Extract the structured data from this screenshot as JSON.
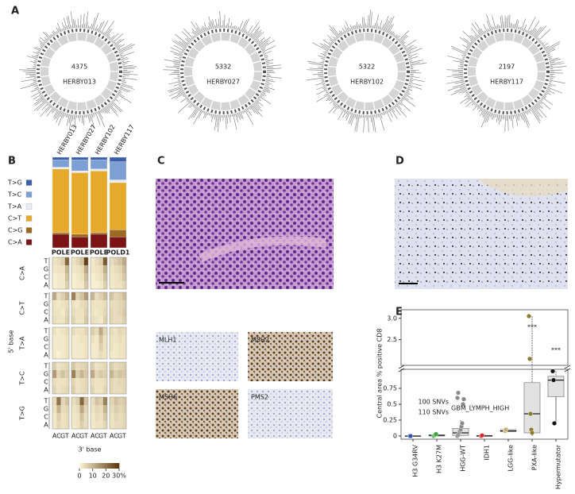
{
  "panels": {
    "a": "A",
    "b": "B",
    "c": "C",
    "d": "D",
    "e": "E"
  },
  "circos": [
    {
      "count": 4375,
      "name": "HERBY013"
    },
    {
      "count": 5332,
      "name": "HERBY027"
    },
    {
      "count": 5322,
      "name": "HERBY102"
    },
    {
      "count": 2197,
      "name": "HERBY117"
    }
  ],
  "ihc": {
    "labels": [
      "MLH1",
      "MSH2",
      "MSH6",
      "PMS2"
    ]
  },
  "chart_data": [
    {
      "type": "stacked_bar",
      "categories": [
        "HERBY013",
        "HERBY027",
        "HERBY102",
        "HERBY117"
      ],
      "series": [
        {
          "name": "T>G",
          "color": "#3a5fa8",
          "values": [
            3,
            3,
            3,
            5
          ]
        },
        {
          "name": "T>C",
          "color": "#7d9fd3",
          "values": [
            8,
            12,
            10,
            20
          ]
        },
        {
          "name": "T>A",
          "color": "#e9edf3",
          "values": [
            2,
            2,
            2,
            3
          ]
        },
        {
          "name": "C>T",
          "color": "#e7a92b",
          "values": [
            70,
            68,
            68,
            52
          ]
        },
        {
          "name": "C>G",
          "color": "#9a6a22",
          "values": [
            2,
            3,
            2,
            8
          ]
        },
        {
          "name": "C>A",
          "color": "#7b1414",
          "values": [
            15,
            12,
            15,
            12
          ]
        }
      ]
    },
    {
      "type": "heatmap",
      "column_labels": [
        "POLE",
        "POLE",
        "POLE",
        "POLD1"
      ],
      "row_groups": [
        "C>A",
        "C>T",
        "T>A",
        "T>C",
        "T>G"
      ],
      "five_prime": [
        "T",
        "G",
        "C",
        "A"
      ],
      "three_prime": [
        "A",
        "C",
        "G",
        "T"
      ],
      "ylabel": "5' base",
      "xlabel": "3' base",
      "colorbar": {
        "lim": [
          0,
          30
        ],
        "ticks": [
          0,
          10,
          20,
          {
            "value": 30,
            "label": "30%"
          }
        ]
      },
      "values": [
        [
          [
            [
              3,
              4,
              6,
              22
            ],
            [
              2,
              3,
              3,
              10
            ],
            [
              1,
              2,
              2,
              8
            ],
            [
              1,
              2,
              2,
              6
            ]
          ],
          [
            [
              3,
              5,
              8,
              28
            ],
            [
              2,
              3,
              4,
              12
            ],
            [
              1,
              2,
              3,
              9
            ],
            [
              1,
              2,
              2,
              7
            ]
          ],
          [
            [
              2,
              4,
              6,
              24
            ],
            [
              2,
              3,
              4,
              11
            ],
            [
              1,
              2,
              3,
              8
            ],
            [
              1,
              1,
              2,
              6
            ]
          ],
          [
            [
              4,
              6,
              8,
              12
            ],
            [
              3,
              4,
              5,
              9
            ],
            [
              2,
              3,
              4,
              7
            ],
            [
              2,
              3,
              3,
              5
            ]
          ]
        ],
        [
          [
            [
              12,
              4,
              6,
              10
            ],
            [
              3,
              2,
              3,
              4
            ],
            [
              3,
              3,
              2,
              5
            ],
            [
              4,
              3,
              3,
              6
            ]
          ],
          [
            [
              18,
              5,
              8,
              14
            ],
            [
              3,
              2,
              4,
              5
            ],
            [
              4,
              3,
              3,
              6
            ],
            [
              5,
              3,
              3,
              7
            ]
          ],
          [
            [
              10,
              4,
              6,
              9
            ],
            [
              3,
              3,
              3,
              4
            ],
            [
              3,
              2,
              3,
              5
            ],
            [
              4,
              3,
              2,
              6
            ]
          ],
          [
            [
              8,
              5,
              6,
              9
            ],
            [
              4,
              4,
              5,
              6
            ],
            [
              5,
              4,
              5,
              7
            ],
            [
              5,
              4,
              4,
              6
            ]
          ]
        ],
        [
          [
            [
              3,
              2,
              3,
              4
            ],
            [
              2,
              2,
              2,
              3
            ],
            [
              2,
              2,
              2,
              3
            ],
            [
              2,
              1,
              2,
              3
            ]
          ],
          [
            [
              4,
              3,
              3,
              5
            ],
            [
              2,
              2,
              3,
              3
            ],
            [
              2,
              2,
              2,
              3
            ],
            [
              2,
              2,
              2,
              3
            ]
          ],
          [
            [
              6,
              4,
              12,
              5
            ],
            [
              3,
              2,
              8,
              3
            ],
            [
              2,
              2,
              6,
              3
            ],
            [
              2,
              2,
              4,
              3
            ]
          ],
          [
            [
              4,
              3,
              5,
              4
            ],
            [
              3,
              3,
              4,
              3
            ],
            [
              3,
              2,
              3,
              3
            ],
            [
              2,
              2,
              3,
              3
            ]
          ]
        ],
        [
          [
            [
              6,
              3,
              4,
              5
            ],
            [
              14,
              5,
              8,
              6
            ],
            [
              4,
              3,
              3,
              4
            ],
            [
              5,
              3,
              4,
              5
            ]
          ],
          [
            [
              7,
              4,
              5,
              6
            ],
            [
              18,
              6,
              10,
              7
            ],
            [
              5,
              3,
              4,
              5
            ],
            [
              6,
              3,
              4,
              5
            ]
          ],
          [
            [
              6,
              3,
              4,
              5
            ],
            [
              12,
              5,
              7,
              6
            ],
            [
              4,
              3,
              3,
              4
            ],
            [
              5,
              3,
              3,
              5
            ]
          ],
          [
            [
              6,
              4,
              5,
              6
            ],
            [
              10,
              6,
              8,
              7
            ],
            [
              5,
              4,
              5,
              5
            ],
            [
              5,
              4,
              4,
              5
            ]
          ]
        ],
        [
          [
            [
              4,
              20,
              5,
              8
            ],
            [
              3,
              10,
              4,
              5
            ],
            [
              2,
              6,
              3,
              4
            ],
            [
              2,
              5,
              3,
              4
            ]
          ],
          [
            [
              4,
              6,
              22,
              8
            ],
            [
              3,
              4,
              12,
              5
            ],
            [
              2,
              3,
              8,
              4
            ],
            [
              2,
              3,
              6,
              4
            ]
          ],
          [
            [
              4,
              8,
              6,
              18
            ],
            [
              3,
              5,
              4,
              10
            ],
            [
              2,
              4,
              3,
              7
            ],
            [
              2,
              3,
              3,
              5
            ]
          ],
          [
            [
              5,
              8,
              6,
              7
            ],
            [
              4,
              6,
              5,
              6
            ],
            [
              3,
              5,
              4,
              5
            ],
            [
              3,
              4,
              4,
              5
            ]
          ]
        ]
      ]
    },
    {
      "type": "box",
      "ylabel": "Central area % positive CD8",
      "ylim": [
        -0.05,
        1.05
      ],
      "yticks": [
        0,
        0.25,
        0.5,
        0.75
      ],
      "y_upper_lim": [
        1.9,
        3.2
      ],
      "y_upper_ticks": [
        2.5,
        {
          "value": 3,
          "label": "3.0"
        }
      ],
      "categories": [
        "H3 G34RV",
        "H3 K27M",
        "HGG-WT",
        "IDH1",
        "LGG-like",
        "PXA-like",
        "Hypermutator"
      ],
      "colors": [
        "#2f4fa8",
        "#3aa635",
        "#8a8a8a",
        "#d62728",
        "#c8a96e",
        "#8b7a2b",
        "#111111"
      ],
      "boxes": [
        {
          "low": 0,
          "q1": 0,
          "median": 0,
          "q3": 0,
          "high": 0,
          "points": [
            0,
            0
          ]
        },
        {
          "low": 0,
          "q1": 0,
          "median": 0.01,
          "q3": 0.02,
          "high": 0.03,
          "points": [
            0,
            0.01,
            0.02,
            0.03
          ]
        },
        {
          "low": 0,
          "q1": 0.01,
          "median": 0.05,
          "q3": 0.12,
          "high": 0.25,
          "points": [
            0,
            0.02,
            0.05,
            0.08,
            0.1,
            0.15,
            0.2,
            0.5,
            0.58,
            0.6,
            0.68
          ]
        },
        {
          "low": 0,
          "q1": 0,
          "median": 0,
          "q3": 0.01,
          "high": 0.02,
          "points": [
            0,
            0.01
          ]
        },
        {
          "low": 0.07,
          "q1": 0.07,
          "median": 0.08,
          "q3": 0.1,
          "high": 0.1,
          "points": [
            0.08,
            0.1
          ]
        },
        {
          "low": 0,
          "q1": 0.05,
          "median": 0.35,
          "q3": 0.84,
          "high": 3.05,
          "points": [
            3.05,
            2.05,
            0.35,
            0.1,
            0.05
          ]
        },
        {
          "low": 0.2,
          "q1": 0.62,
          "median": 0.88,
          "q3": 0.94,
          "high": 1.02,
          "points": [
            1.02,
            0.88,
            0.2
          ]
        }
      ],
      "annotations": [
        "100 SNVs",
        "110 SNVs",
        "GBM_LYMPH_HIGH",
        "***",
        "***"
      ]
    }
  ]
}
